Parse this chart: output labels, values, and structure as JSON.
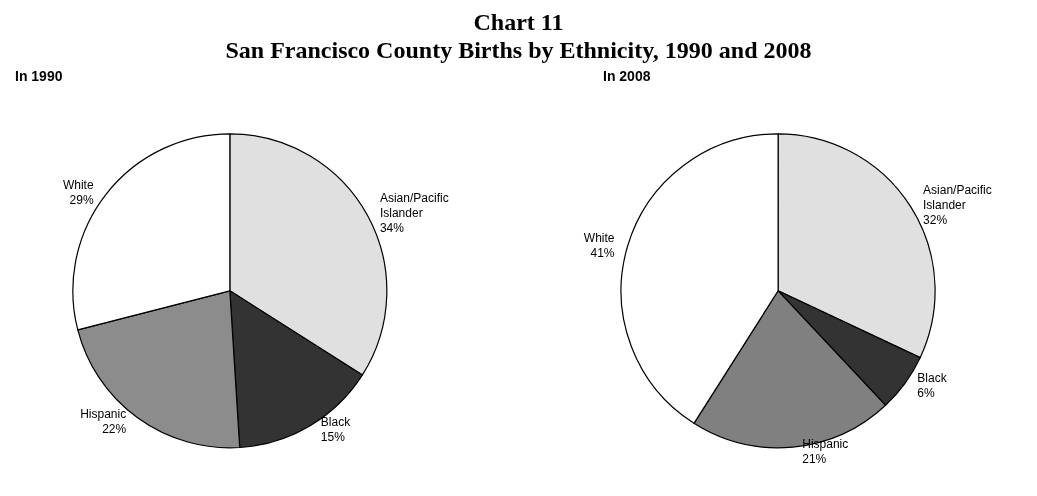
{
  "chart_data": [
    {
      "type": "pie",
      "title": "Chart 11",
      "subtitle": "San Francisco County Births by Ethnicity, 1990 and 2008",
      "annotations": [
        "In 1990"
      ],
      "categories": [
        "Asian/Pacific Islander",
        "Black",
        "Hispanic",
        "White"
      ],
      "values": [
        34,
        15,
        22,
        29
      ],
      "value_labels": [
        "34%",
        "15%",
        "22%",
        "29%"
      ],
      "colors": [
        "#e0e0e0",
        "#333333",
        "#8c8c8c",
        "#ffffff"
      ]
    },
    {
      "type": "pie",
      "title": "In 2008",
      "categories": [
        "Asian/Pacific Islander",
        "Black",
        "Hispanic",
        "White"
      ],
      "values": [
        32,
        6,
        21,
        41
      ],
      "value_labels": [
        "32%",
        "6%",
        "21%",
        "41%"
      ],
      "colors": [
        "#e0e0e0",
        "#333333",
        "#808080",
        "#ffffff"
      ]
    }
  ]
}
